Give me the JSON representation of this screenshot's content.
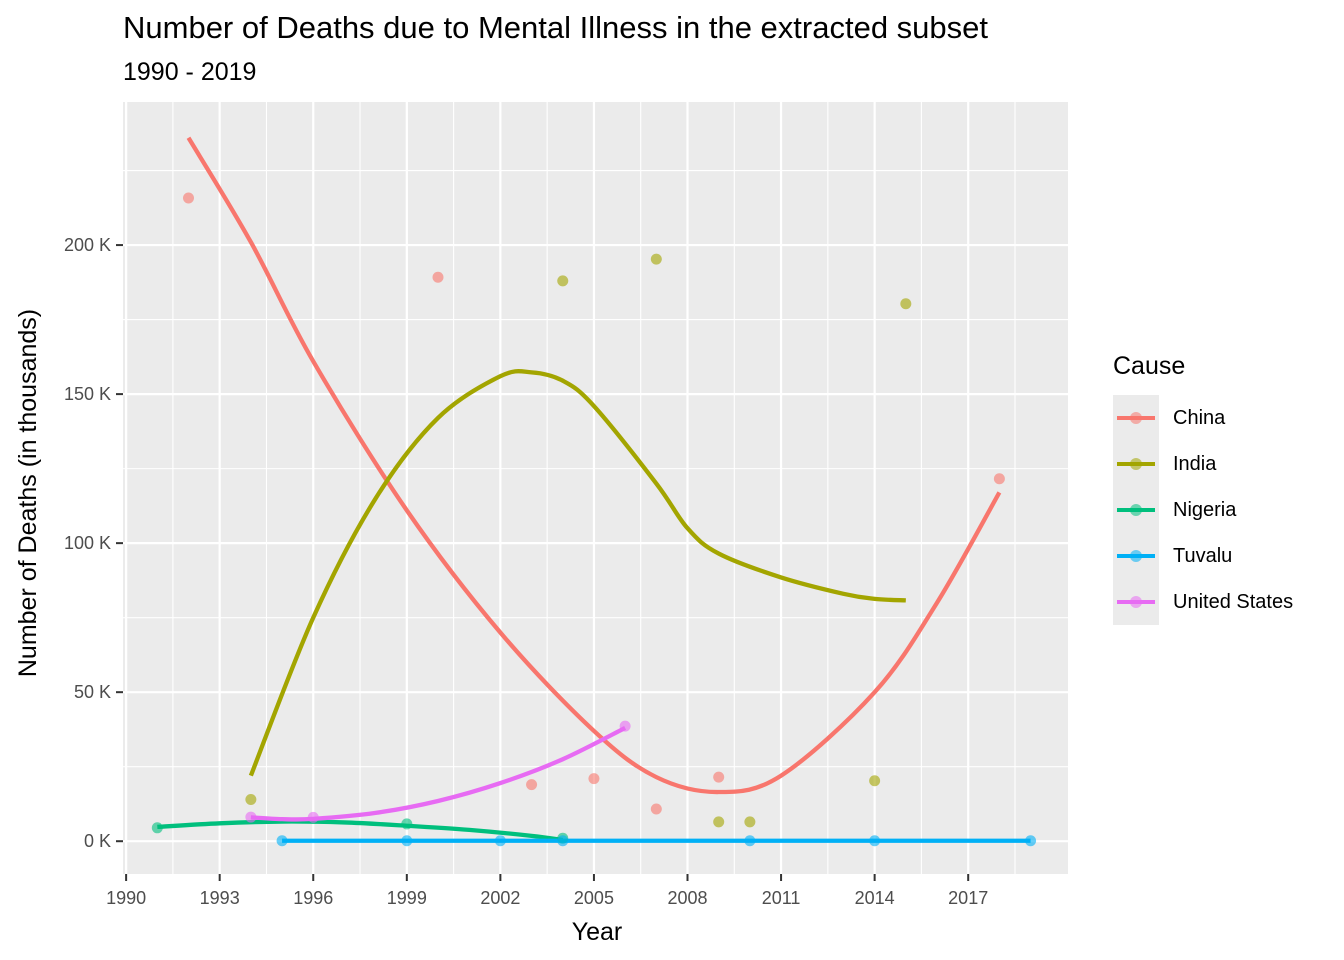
{
  "chart_data": {
    "type": "scatter",
    "title": "Number of Deaths due to Mental Illness in the extracted subset",
    "subtitle": "1990 - 2019",
    "xlabel": "Year",
    "ylabel": "Number of Deaths (in thousands)",
    "xlim": [
      1989.9,
      2020.2
    ],
    "ylim": [
      -11000,
      248000
    ],
    "x_ticks": [
      1990,
      1993,
      1996,
      1999,
      2002,
      2005,
      2008,
      2011,
      2014,
      2017
    ],
    "y_ticks": [
      0,
      50000,
      100000,
      150000,
      200000
    ],
    "y_tick_labels": [
      "0 K",
      "50 K",
      "100 K",
      "150 K",
      "200 K"
    ],
    "grid": true,
    "legend": {
      "title": "Cause",
      "placement": "right"
    },
    "series": [
      {
        "name": "China",
        "color": "#F8766D",
        "points": [
          [
            1992,
            215800
          ],
          [
            2000,
            189200
          ],
          [
            2003,
            19000
          ],
          [
            2005,
            21000
          ],
          [
            2007,
            10800
          ],
          [
            2009,
            21500
          ],
          [
            2018,
            121600
          ]
        ],
        "trend": [
          [
            1992,
            236000
          ],
          [
            1994,
            201000
          ],
          [
            1996,
            161000
          ],
          [
            1999,
            111000
          ],
          [
            2002,
            70000
          ],
          [
            2005,
            37000
          ],
          [
            2007,
            21500
          ],
          [
            2009,
            16500
          ],
          [
            2011,
            22000
          ],
          [
            2014,
            50000
          ],
          [
            2016,
            80000
          ],
          [
            2018,
            117000
          ]
        ]
      },
      {
        "name": "India",
        "color": "#A3A500",
        "points": [
          [
            1994,
            14000
          ],
          [
            2004,
            188000
          ],
          [
            2007,
            195300
          ],
          [
            2009,
            6500
          ],
          [
            2010,
            6500
          ],
          [
            2014,
            20300
          ],
          [
            2015,
            180300
          ]
        ],
        "trend": [
          [
            1994,
            22000
          ],
          [
            1996,
            75000
          ],
          [
            1998,
            115000
          ],
          [
            2000,
            142000
          ],
          [
            2002,
            156000
          ],
          [
            2003,
            157300
          ],
          [
            2004,
            154500
          ],
          [
            2005,
            146000
          ],
          [
            2007,
            120000
          ],
          [
            2008,
            105000
          ],
          [
            2009,
            96500
          ],
          [
            2011,
            88500
          ],
          [
            2013,
            83000
          ],
          [
            2014,
            81300
          ],
          [
            2015,
            80800
          ]
        ]
      },
      {
        "name": "Nigeria",
        "color": "#00BF7D",
        "points": [
          [
            1991,
            4500
          ],
          [
            1999,
            5800
          ],
          [
            2004,
            1000
          ]
        ],
        "trend": [
          [
            1991,
            4800
          ],
          [
            1993,
            6000
          ],
          [
            1995,
            6600
          ],
          [
            1997,
            6300
          ],
          [
            1999,
            5200
          ],
          [
            2001,
            3800
          ],
          [
            2003,
            1800
          ],
          [
            2004,
            400
          ]
        ]
      },
      {
        "name": "Tuvalu",
        "color": "#00B0F6",
        "points": [
          [
            1995,
            150
          ],
          [
            1999,
            150
          ],
          [
            2002,
            150
          ],
          [
            2004,
            150
          ],
          [
            2010,
            150
          ],
          [
            2014,
            150
          ],
          [
            2019,
            150
          ]
        ],
        "trend": [
          [
            1995,
            150
          ],
          [
            2019,
            150
          ]
        ]
      },
      {
        "name": "United States",
        "color": "#E76BF3",
        "points": [
          [
            1994,
            8100
          ],
          [
            1996,
            8000
          ],
          [
            2006,
            38600
          ]
        ],
        "trend": [
          [
            1994,
            8000
          ],
          [
            1995,
            7400
          ],
          [
            1996,
            7500
          ],
          [
            1998,
            9500
          ],
          [
            2000,
            13500
          ],
          [
            2002,
            19500
          ],
          [
            2004,
            27500
          ],
          [
            2006,
            38000
          ]
        ]
      }
    ]
  }
}
